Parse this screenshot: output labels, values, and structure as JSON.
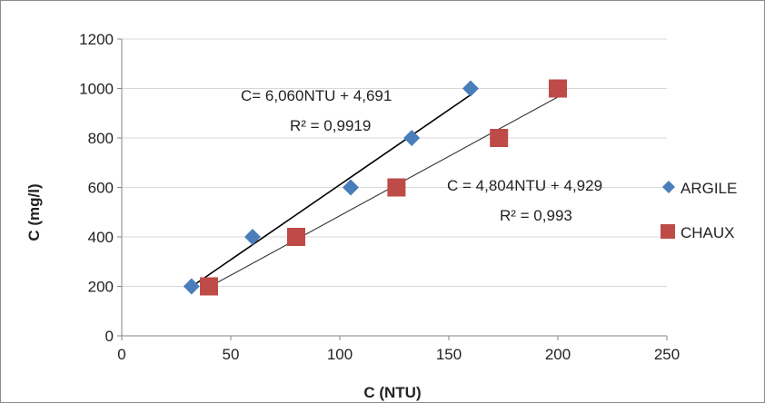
{
  "chart_data": {
    "type": "scatter",
    "title": "",
    "xlabel": "C (NTU)",
    "ylabel": "C (mg/l)",
    "xlim": [
      0,
      250
    ],
    "ylim": [
      0,
      1200
    ],
    "xticks": [
      0,
      50,
      100,
      150,
      200,
      250
    ],
    "yticks": [
      0,
      200,
      400,
      600,
      800,
      1000,
      1200
    ],
    "grid": "horizontal",
    "legend_position": "right",
    "series": [
      {
        "name": "ARGILE",
        "marker": "diamond",
        "color": "#4a7ebb",
        "x": [
          32,
          60,
          105,
          133,
          160
        ],
        "y": [
          200,
          400,
          600,
          800,
          1000
        ],
        "trendline": {
          "slope": 6.06,
          "intercept": 4.691,
          "x_range": [
            32,
            160
          ]
        },
        "equation": "C= 6,060NTU + 4,691",
        "r2": "R² = 0,9919"
      },
      {
        "name": "CHAUX",
        "marker": "square",
        "color": "#be4b48",
        "x": [
          40,
          80,
          126,
          173,
          200
        ],
        "y": [
          200,
          400,
          600,
          800,
          1000
        ],
        "trendline": {
          "slope": 4.804,
          "intercept": 4.929,
          "x_range": [
            40,
            200
          ]
        },
        "equation": "C = 4,804NTU + 4,929",
        "r2": "R² = 0,993"
      }
    ]
  }
}
